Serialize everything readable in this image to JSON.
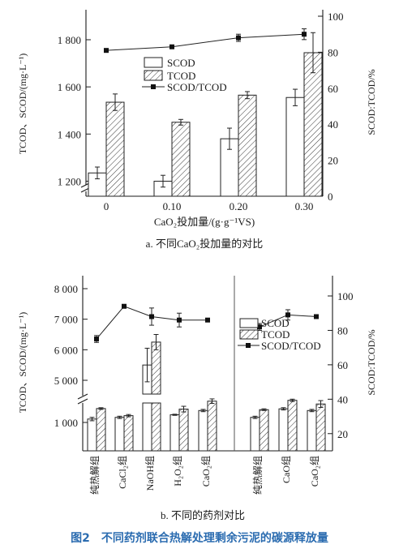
{
  "figure_caption": "图2　不同药剂联合热解处理剩余污泥的碳源释放量",
  "chart_data": [
    {
      "id": "a",
      "type": "bar",
      "subcaption": "a. 不同CaO₂投加量的对比",
      "xlabel": "CaO₂投加量/(g·g⁻¹VS)",
      "ylabel_left": "TCOD、SCOD/(mg·L⁻¹)",
      "ylabel_right": "SCOD:TCOD/%",
      "categories": [
        "0",
        "0.10",
        "0.20",
        "0.30"
      ],
      "y_ticks_left": [
        "1 200",
        "1 400",
        "1 600",
        "1 800"
      ],
      "y_ticks_left_values": [
        1200,
        1400,
        1600,
        1800
      ],
      "y_ticks_right": [
        "0",
        "20",
        "40",
        "60",
        "80",
        "100"
      ],
      "y_ticks_right_values": [
        0,
        20,
        40,
        60,
        80,
        100
      ],
      "ylim_left_broken": [
        1150,
        1900
      ],
      "ylim_right": [
        0,
        100
      ],
      "legend": [
        "SCOD",
        "TCOD",
        "SCOD/TCOD"
      ],
      "series": [
        {
          "name": "SCOD",
          "values": [
            1235,
            1200,
            1380,
            1555
          ],
          "errors": [
            25,
            25,
            45,
            35
          ]
        },
        {
          "name": "TCOD",
          "values": [
            1535,
            1450,
            1565,
            1745
          ],
          "errors": [
            35,
            12,
            15,
            85
          ]
        },
        {
          "name": "SCOD/TCOD",
          "values": [
            81,
            83,
            88,
            90
          ],
          "errors": [
            0,
            0,
            2,
            3
          ]
        }
      ]
    },
    {
      "id": "b",
      "type": "bar",
      "subcaption": "b. 不同的药剂对比",
      "ylabel_left": "TCOD、SCOD/(mg·L⁻¹)",
      "ylabel_right": "SCOD:TCOD/%",
      "y_ticks_left": [
        "1 000",
        "5 000",
        "6 000",
        "7 000",
        "8 000"
      ],
      "y_ticks_left_values": [
        1000,
        5000,
        6000,
        7000,
        8000
      ],
      "y_ticks_right": [
        "20",
        "40",
        "60",
        "80",
        "100"
      ],
      "y_ticks_right_values": [
        20,
        40,
        60,
        80,
        100
      ],
      "ylim_right": [
        10,
        100
      ],
      "legend": [
        "SCOD",
        "TCOD",
        "SCOD/TCOD"
      ],
      "groups": [
        {
          "categories": [
            "纯热解组",
            "CaCl₂组",
            "NaOH组",
            "H₂O₂组",
            "CaO₂组"
          ],
          "series": [
            {
              "name": "SCOD",
              "values": [
                1120,
                1180,
                5500,
                1270,
                1420
              ],
              "errors": [
                60,
                40,
                550,
                20,
                40
              ]
            },
            {
              "name": "TCOD",
              "values": [
                1490,
                1240,
                6250,
                1470,
                1750
              ],
              "errors": [
                30,
                40,
                250,
                100,
                80
              ]
            },
            {
              "name": "SCOD/TCOD",
              "values": [
                75,
                94,
                88,
                86,
                86
              ],
              "errors": [
                2,
                0,
                5,
                4,
                1
              ]
            }
          ]
        },
        {
          "categories": [
            "纯热解组",
            "CaO组",
            "CaO₂组"
          ],
          "series": [
            {
              "name": "SCOD",
              "values": [
                1180,
                1480,
                1420
              ],
              "errors": [
                40,
                40,
                40
              ]
            },
            {
              "name": "TCOD",
              "values": [
                1450,
                1780,
                1650
              ],
              "errors": [
                30,
                40,
                120
              ]
            },
            {
              "name": "SCOD/TCOD",
              "values": [
                82,
                89,
                88
              ],
              "errors": [
                2,
                3,
                1
              ]
            }
          ]
        }
      ]
    }
  ]
}
